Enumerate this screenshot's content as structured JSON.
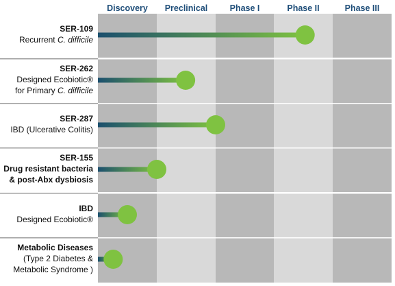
{
  "chart_data": {
    "type": "bar",
    "orientation": "horizontal",
    "phases": [
      "Discovery",
      "Preclinical",
      "Phase I",
      "Phase II",
      "Phase III"
    ],
    "colors": {
      "bar_start": "#1b4f6e",
      "bar_end": "#7fc241",
      "marker": "#7fc241",
      "phase_label": "#1f4e79",
      "cell_dark": "#b8b8b8",
      "cell_light": "#d9d9d9",
      "gridline": "#ffffff"
    },
    "programs": [
      {
        "title": "SER-109",
        "title_bold": true,
        "line2": "Recurrent ",
        "line2_italic": "C. difficile",
        "line3": "",
        "line3_italic": "",
        "progress_phase": 3.52
      },
      {
        "title": "SER-262",
        "title_bold": true,
        "line2": "Designed Ecobiotic®",
        "line2_italic": "",
        "line3": "for Primary ",
        "line3_italic": "C. difficile",
        "progress_phase": 1.49
      },
      {
        "title": "SER-287",
        "title_bold": true,
        "line2": "IBD (Ulcerative Colitis)",
        "line2_italic": "",
        "line3": "",
        "line3_italic": "",
        "progress_phase": 2.0
      },
      {
        "title": "SER-155",
        "title_bold": true,
        "line2": "Drug resistant bacteria",
        "line2_italic": "",
        "line3": "& post-Abx dysbiosis",
        "line3_italic": "",
        "progress_phase": 1.0
      },
      {
        "title": "IBD",
        "title_bold": true,
        "line2": "Designed Ecobiotic®",
        "line2_italic": "",
        "line3": "",
        "line3_italic": "",
        "progress_phase": 0.5
      },
      {
        "title": "Metabolic Diseases",
        "title_bold": true,
        "line2": "(Type 2 Diabetes &",
        "line2_italic": "",
        "line3": "Metabolic Syndrome )",
        "line3_italic": "",
        "progress_phase": 0.26
      }
    ],
    "title": "",
    "xlabel": "",
    "ylabel": "",
    "grid": true,
    "legend": "none"
  }
}
